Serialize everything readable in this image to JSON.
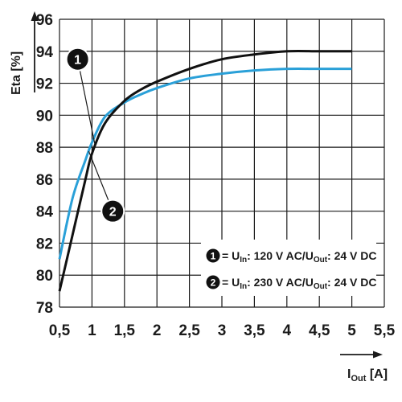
{
  "chart_data": {
    "type": "line",
    "xlabel": "I",
    "xlabel_sub": "Out",
    "xlabel_unit": " [A]",
    "ylabel": "Eta [%]",
    "xlim": [
      0.5,
      5.5
    ],
    "ylim": [
      78,
      96
    ],
    "x_ticks": [
      "0,5",
      "1",
      "1,5",
      "2",
      "2,5",
      "3",
      "3,5",
      "4",
      "4,5",
      "5",
      "5,5"
    ],
    "y_ticks": [
      "78",
      "80",
      "82",
      "84",
      "86",
      "88",
      "90",
      "92",
      "94",
      "96"
    ],
    "grid": true,
    "series": [
      {
        "name": "1",
        "color": "#111111",
        "x": [
          0.5,
          0.7,
          0.9,
          1.0,
          1.2,
          1.5,
          1.75,
          2.0,
          2.5,
          3.0,
          3.5,
          4.0,
          4.5,
          5.0
        ],
        "y": [
          79.0,
          82.5,
          86.0,
          87.6,
          89.5,
          90.9,
          91.6,
          92.1,
          92.9,
          93.5,
          93.8,
          94.0,
          94.0,
          94.0
        ]
      },
      {
        "name": "2",
        "color": "#2aa0d8",
        "x": [
          0.5,
          0.7,
          0.9,
          1.0,
          1.2,
          1.5,
          1.75,
          2.0,
          2.5,
          3.0,
          3.5,
          4.0,
          4.5,
          5.0
        ],
        "y": [
          81.0,
          84.8,
          87.2,
          88.3,
          89.9,
          90.8,
          91.3,
          91.7,
          92.3,
          92.6,
          92.8,
          92.9,
          92.9,
          92.9
        ]
      }
    ],
    "markers": [
      {
        "series": "1",
        "label": "1",
        "x": 0.78,
        "y": 93.5
      },
      {
        "series": "2",
        "label": "2",
        "x": 1.32,
        "y": 84.0
      }
    ],
    "legend": {
      "placement": "bottom-right",
      "entries": [
        {
          "num": "1",
          "text_a": "= U",
          "sub_a": "In",
          "text_b": ": 120 V AC/U",
          "sub_b": "Out",
          "text_c": ": 24 V DC"
        },
        {
          "num": "2",
          "text_a": "= U",
          "sub_a": "In",
          "text_b": ": 230 V AC/U",
          "sub_b": "Out",
          "text_c": ": 24 V DC"
        }
      ]
    }
  }
}
